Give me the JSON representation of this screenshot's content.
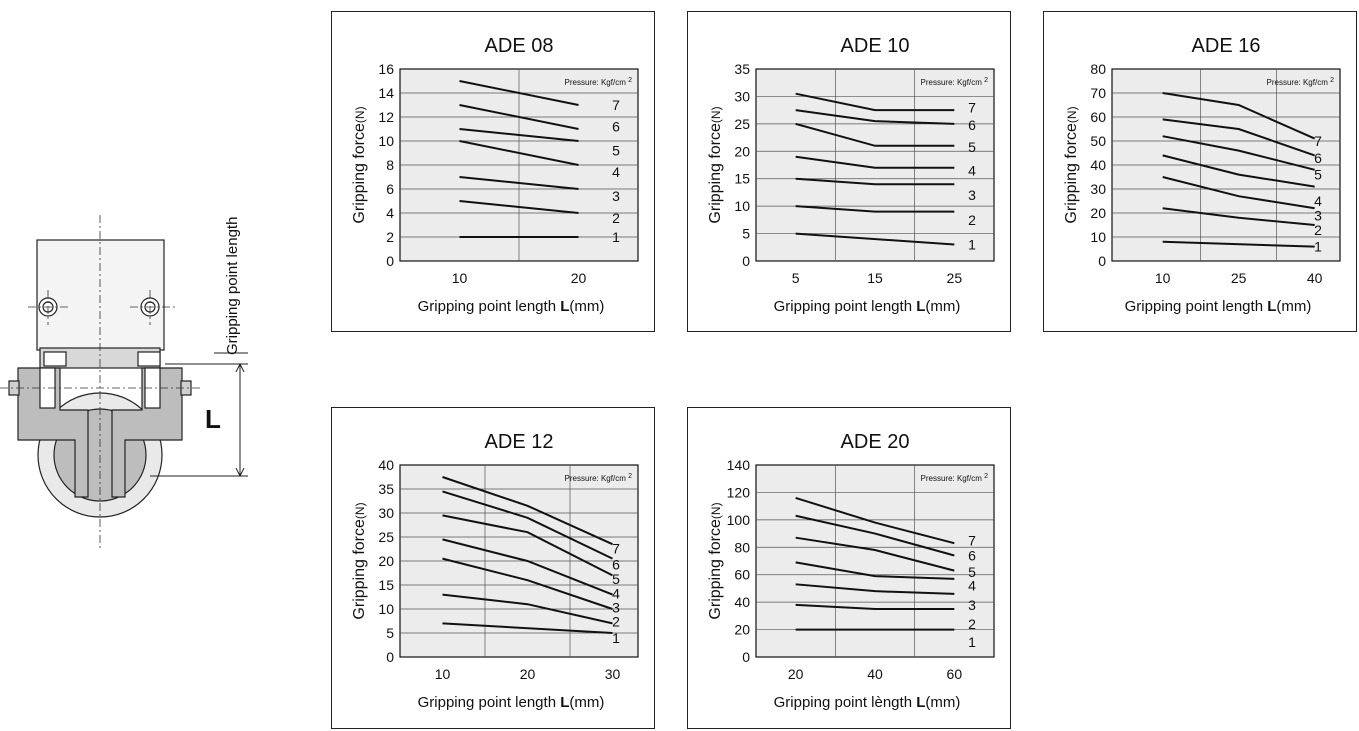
{
  "diagram": {
    "dimension_label": "Gripping point length",
    "L_label": "L"
  },
  "chart_data": [
    {
      "type": "line",
      "title": "ADE 08",
      "legend_label": "Pressure:  Kgf/cm ",
      "legend_sup": "2",
      "ylabel_main": "Gripping force",
      "ylabel_unit": "(N)",
      "xlabel_main": "Gripping point length ",
      "xlabel_L": "L",
      "xlabel_unit": "(mm)",
      "xlim": [
        5,
        25
      ],
      "ylim": [
        0,
        16
      ],
      "xticks": [
        10,
        20
      ],
      "yticks": [
        0,
        2,
        4,
        6,
        8,
        10,
        12,
        14,
        16
      ],
      "series": [
        {
          "name": "1",
          "x": [
            10,
            20
          ],
          "y": [
            2,
            2
          ]
        },
        {
          "name": "2",
          "x": [
            10,
            20
          ],
          "y": [
            5,
            4
          ]
        },
        {
          "name": "3",
          "x": [
            10,
            20
          ],
          "y": [
            7,
            6
          ]
        },
        {
          "name": "4",
          "x": [
            10,
            20
          ],
          "y": [
            10,
            8
          ]
        },
        {
          "name": "5",
          "x": [
            10,
            20
          ],
          "y": [
            11,
            10
          ]
        },
        {
          "name": "6",
          "x": [
            10,
            20
          ],
          "y": [
            13,
            11
          ]
        },
        {
          "name": "7",
          "x": [
            10,
            20
          ],
          "y": [
            15,
            13
          ]
        }
      ],
      "series_label_y": [
        2,
        3.6,
        5.4,
        7.4,
        9.2,
        11.2,
        13
      ],
      "grid": true
    },
    {
      "type": "line",
      "title": "ADE 10",
      "legend_label": "Pressure:  Kgf/cm ",
      "legend_sup": "2",
      "ylabel_main": "Gripping force",
      "ylabel_unit": "(N)",
      "xlabel_main": "Gripping point length ",
      "xlabel_L": "L",
      "xlabel_unit": "(mm)",
      "xlim": [
        0,
        30
      ],
      "ylim": [
        0,
        35
      ],
      "xticks": [
        5,
        15,
        25
      ],
      "yticks": [
        0,
        5,
        10,
        15,
        20,
        25,
        30,
        35
      ],
      "series": [
        {
          "name": "1",
          "x": [
            5,
            25
          ],
          "y": [
            5,
            3
          ]
        },
        {
          "name": "2",
          "x": [
            5,
            15,
            25
          ],
          "y": [
            10,
            9,
            9
          ]
        },
        {
          "name": "3",
          "x": [
            5,
            15,
            25
          ],
          "y": [
            15,
            14,
            14
          ]
        },
        {
          "name": "4",
          "x": [
            5,
            15,
            25
          ],
          "y": [
            19,
            17,
            17
          ]
        },
        {
          "name": "5",
          "x": [
            5,
            15,
            25
          ],
          "y": [
            25,
            21,
            21
          ]
        },
        {
          "name": "6",
          "x": [
            5,
            15,
            25
          ],
          "y": [
            27.5,
            25.5,
            25
          ]
        },
        {
          "name": "7",
          "x": [
            5,
            15,
            25
          ],
          "y": [
            30.5,
            27.5,
            27.5
          ]
        }
      ],
      "series_label_y": [
        3,
        7.5,
        12,
        16.5,
        20.8,
        24.8,
        28
      ],
      "grid": true
    },
    {
      "type": "line",
      "title": "ADE 16",
      "legend_label": "Pressure:  Kgf/cm ",
      "legend_sup": "2",
      "ylabel_main": "Gripping force",
      "ylabel_unit": "(N)",
      "xlabel_main": "Gripping point length ",
      "xlabel_L": "L",
      "xlabel_unit": "(mm)",
      "xlim": [
        0,
        45
      ],
      "ylim": [
        0,
        80
      ],
      "xticks": [
        10,
        25,
        40
      ],
      "yticks": [
        0,
        10,
        20,
        30,
        40,
        50,
        60,
        70,
        80
      ],
      "series": [
        {
          "name": "1",
          "x": [
            10,
            40
          ],
          "y": [
            8,
            6
          ]
        },
        {
          "name": "2",
          "x": [
            10,
            25,
            40
          ],
          "y": [
            22,
            18,
            15
          ]
        },
        {
          "name": "3",
          "x": [
            10,
            25,
            40
          ],
          "y": [
            35,
            27,
            22
          ]
        },
        {
          "name": "4",
          "x": [
            10,
            25,
            40
          ],
          "y": [
            44,
            36,
            31
          ]
        },
        {
          "name": "5",
          "x": [
            10,
            25,
            40
          ],
          "y": [
            52,
            46,
            38
          ]
        },
        {
          "name": "6",
          "x": [
            10,
            25,
            40
          ],
          "y": [
            59,
            55,
            44
          ]
        },
        {
          "name": "7",
          "x": [
            10,
            25,
            40
          ],
          "y": [
            70,
            65,
            51
          ]
        }
      ],
      "series_label_y": [
        6,
        13,
        19,
        25,
        36,
        43,
        50
      ],
      "grid": true
    },
    {
      "type": "line",
      "title": "ADE 12",
      "legend_label": "Pressure:  Kgf/cm ",
      "legend_sup": "2",
      "ylabel_main": "Gripping force",
      "ylabel_unit": "(N)",
      "xlabel_main": "Gripping point length ",
      "xlabel_L": "L",
      "xlabel_unit": "(mm)",
      "xlim": [
        5,
        33
      ],
      "ylim": [
        0,
        40
      ],
      "xticks": [
        10,
        20,
        30
      ],
      "yticks": [
        0,
        5,
        10,
        15,
        20,
        25,
        30,
        35,
        40
      ],
      "series": [
        {
          "name": "1",
          "x": [
            10,
            30
          ],
          "y": [
            7,
            5
          ]
        },
        {
          "name": "2",
          "x": [
            10,
            20,
            30
          ],
          "y": [
            13,
            11,
            7
          ]
        },
        {
          "name": "3",
          "x": [
            10,
            20,
            30
          ],
          "y": [
            20.5,
            16,
            10
          ]
        },
        {
          "name": "4",
          "x": [
            10,
            20,
            30
          ],
          "y": [
            24.5,
            20,
            13
          ]
        },
        {
          "name": "5",
          "x": [
            10,
            20,
            30
          ],
          "y": [
            29.5,
            26,
            17
          ]
        },
        {
          "name": "6",
          "x": [
            10,
            20,
            30
          ],
          "y": [
            34.5,
            29,
            20.5
          ]
        },
        {
          "name": "7",
          "x": [
            10,
            20,
            30
          ],
          "y": [
            37.5,
            31.5,
            23.5
          ]
        }
      ],
      "series_label_y": [
        4,
        7.4,
        10.3,
        13.2,
        16.2,
        19.3,
        22.6
      ],
      "grid": true
    },
    {
      "type": "line",
      "title": "ADE 20",
      "legend_label": "Pressure:  Kgf/cm ",
      "legend_sup": "2",
      "ylabel_main": "Gripping force",
      "ylabel_unit": "(N)",
      "xlabel_main": "Gripping point lèngth ",
      "xlabel_L": "L",
      "xlabel_unit": "(mm)",
      "xlim": [
        10,
        70
      ],
      "ylim": [
        0,
        140
      ],
      "xticks": [
        20,
        40,
        60
      ],
      "yticks": [
        0,
        20,
        40,
        60,
        80,
        100,
        120,
        140
      ],
      "series": [
        {
          "name": "1",
          "x": [
            20,
            60
          ],
          "y": [
            20,
            20
          ]
        },
        {
          "name": "2",
          "x": [
            20,
            40,
            60
          ],
          "y": [
            38,
            35,
            35
          ]
        },
        {
          "name": "3",
          "x": [
            20,
            40,
            60
          ],
          "y": [
            53,
            48,
            46
          ]
        },
        {
          "name": "4",
          "x": [
            20,
            40,
            60
          ],
          "y": [
            69,
            59,
            57
          ]
        },
        {
          "name": "5",
          "x": [
            20,
            40,
            60
          ],
          "y": [
            87,
            78,
            63
          ]
        },
        {
          "name": "6",
          "x": [
            20,
            40,
            60
          ],
          "y": [
            103,
            90,
            74
          ]
        },
        {
          "name": "7",
          "x": [
            20,
            40,
            60
          ],
          "y": [
            116,
            98,
            83
          ]
        }
      ],
      "series_label_y": [
        11,
        24,
        38,
        52,
        62,
        74,
        85
      ],
      "grid": true
    }
  ]
}
